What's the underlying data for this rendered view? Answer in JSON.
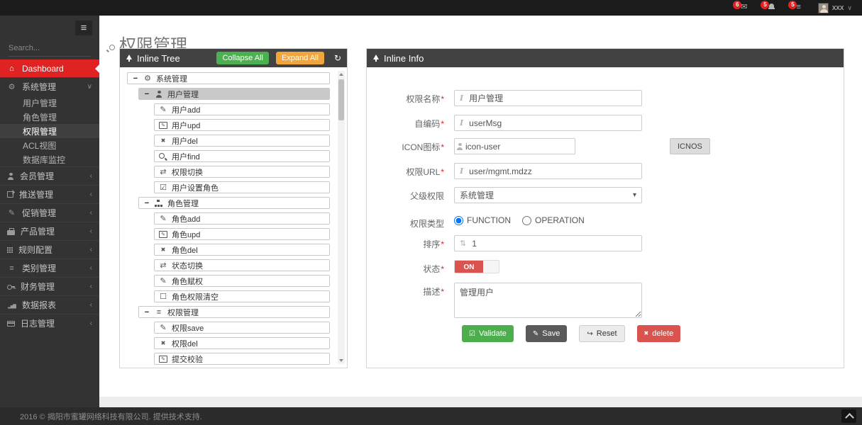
{
  "navbar": {
    "notifications": [
      {
        "name": "messages",
        "icon": "envelope",
        "count": "6"
      },
      {
        "name": "notifications",
        "icon": "bell",
        "count": "5"
      },
      {
        "name": "tasks",
        "icon": "list",
        "count": "5"
      }
    ],
    "user": {
      "name": "xxx"
    }
  },
  "sidebar": {
    "search_placeholder": "Search...",
    "items": [
      {
        "name": "dashboard",
        "label": "Dashboard",
        "icon": "home",
        "active": true
      },
      {
        "name": "system-mgmt",
        "label": "系统管理",
        "icon": "gears",
        "expanded": true,
        "children": [
          {
            "name": "user-mgmt",
            "label": "用户管理"
          },
          {
            "name": "role-mgmt",
            "label": "角色管理"
          },
          {
            "name": "permission-mgmt",
            "label": "权限管理",
            "active": true
          },
          {
            "name": "acl-view",
            "label": "ACL视图"
          },
          {
            "name": "db-monitor",
            "label": "数据库监控"
          }
        ]
      },
      {
        "name": "member-mgmt",
        "label": "会员管理",
        "icon": "user"
      },
      {
        "name": "push-mgmt",
        "label": "推送管理",
        "icon": "share"
      },
      {
        "name": "promo-mgmt",
        "label": "促销管理",
        "icon": "pencil"
      },
      {
        "name": "product-mgmt",
        "label": "产品管理",
        "icon": "brief"
      },
      {
        "name": "rule-config",
        "label": "规则配置",
        "icon": "grid"
      },
      {
        "name": "category-mgmt",
        "label": "类别管理",
        "icon": "list"
      },
      {
        "name": "finance-mgmt",
        "label": "财务管理",
        "icon": "key"
      },
      {
        "name": "data-report",
        "label": "数据报表",
        "icon": "chart"
      },
      {
        "name": "log-mgmt",
        "label": "日志管理",
        "icon": "card"
      }
    ]
  },
  "page": {
    "title": "权限管理"
  },
  "tree": {
    "title": "Inline Tree",
    "collapse_label": "Collapse All",
    "expand_label": "Expand All",
    "nodes": [
      {
        "label": "系统管理",
        "icon": "gears",
        "level": 0,
        "parent": true
      },
      {
        "label": "用户管理",
        "icon": "user",
        "level": 1,
        "parent": true,
        "selected": true
      },
      {
        "label": "用户add",
        "icon": "pencil",
        "level": 2
      },
      {
        "label": "用户upd",
        "icon": "pencil-sq",
        "level": 2
      },
      {
        "label": "用户del",
        "icon": "x",
        "level": 2
      },
      {
        "label": "用户find",
        "icon": "search",
        "level": 2
      },
      {
        "label": "权限切换",
        "icon": "exchange",
        "level": 2
      },
      {
        "label": "用户设置角色",
        "icon": "check-square",
        "level": 2
      },
      {
        "label": "角色管理",
        "icon": "sitemap",
        "level": 1,
        "parent": true
      },
      {
        "label": "角色add",
        "icon": "pencil",
        "level": 2
      },
      {
        "label": "角色upd",
        "icon": "pencil-sq",
        "level": 2
      },
      {
        "label": "角色del",
        "icon": "x",
        "level": 2
      },
      {
        "label": "状态切换",
        "icon": "exchange",
        "level": 2
      },
      {
        "label": "角色赋权",
        "icon": "pencil",
        "level": 2
      },
      {
        "label": "角色权限清空",
        "icon": "square-o",
        "level": 2
      },
      {
        "label": "权限管理",
        "icon": "list",
        "level": 1,
        "parent": true
      },
      {
        "label": "权限save",
        "icon": "pencil",
        "level": 2
      },
      {
        "label": "权限del",
        "icon": "x",
        "level": 2
      },
      {
        "label": "提交校验",
        "icon": "pencil-sq",
        "level": 2
      }
    ]
  },
  "form": {
    "title": "Inline Info",
    "required_mark": "*",
    "name": {
      "label": "权限名称",
      "value": "用户管理"
    },
    "code": {
      "label": "自编码",
      "value": "userMsg"
    },
    "icon": {
      "label": "ICON图标",
      "value": "icon-user",
      "button": "ICNOS"
    },
    "url": {
      "label": "权限URL",
      "value": "user/mgmt.mdzz"
    },
    "parent": {
      "label": "父级权限",
      "value": "系统管理"
    },
    "type": {
      "label": "权限类型",
      "options": [
        "FUNCTION",
        "OPERATION"
      ],
      "selected": "FUNCTION"
    },
    "sort": {
      "label": "排序",
      "value": "1"
    },
    "status": {
      "label": "状态",
      "value": "ON"
    },
    "desc": {
      "label": "描述",
      "value": "管理用户"
    },
    "buttons": {
      "validate": "Validate",
      "save": "Save",
      "reset": "Reset",
      "delete": "delete"
    }
  },
  "footer": {
    "text": "2016 © 揭阳市蜜罐网络科技有限公司. 提供技术支持."
  }
}
